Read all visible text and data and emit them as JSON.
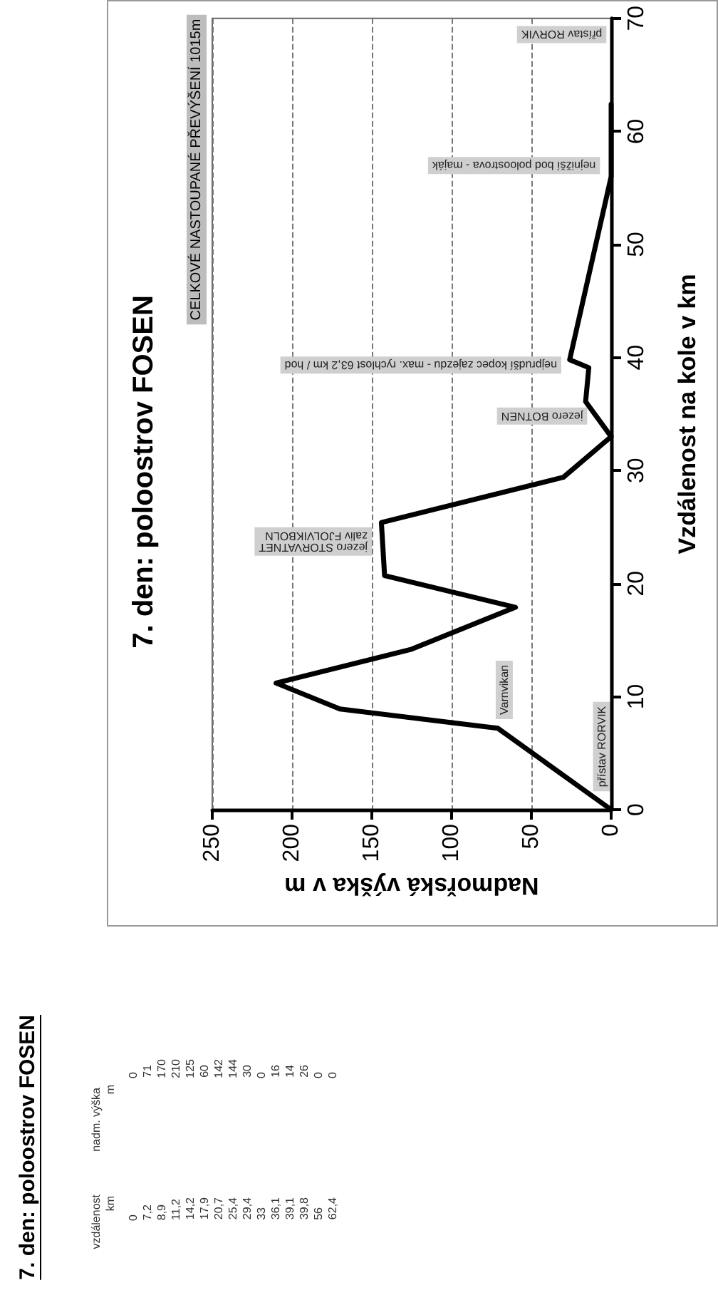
{
  "chart_data": [
    {
      "type": "other",
      "title": "7. den: poloostrov FOSEN",
      "annotations": [
        "vzdálenost",
        "nadm. výška",
        "km",
        "m",
        "0",
        "71",
        "170",
        "210",
        "125",
        "60",
        "142",
        "144",
        "30",
        "0",
        "16",
        "14",
        "26",
        "0",
        "0"
      ],
      "categories": [
        "0",
        "7,2",
        "8,9",
        "11,2",
        "14,2",
        "17,9",
        "20,7",
        "25,4",
        "29,4",
        "33",
        "36,1",
        "39,1",
        "39,8",
        "56",
        "62,4"
      ]
    },
    {
      "type": "line",
      "title": "7. den: poloostrov FOSEN",
      "xlabel": "Nadmořská výška v m",
      "ylabel": "Vzdálenost na kole v km",
      "x": [
        0,
        71,
        170,
        210,
        125,
        60,
        142,
        144,
        30,
        0,
        16,
        14,
        26,
        0,
        0
      ],
      "series": [
        {
          "color": "#000000",
          "values": [
            0,
            7.2,
            8.9,
            11.2,
            14.2,
            17.9,
            20.7,
            25.4,
            29.4,
            33,
            36.1,
            39.1,
            39.8,
            56,
            62.4
          ]
        }
      ],
      "xlim": [
        250,
        0
      ],
      "xticks": [
        250,
        200,
        150,
        100,
        50,
        0
      ],
      "ylim": [
        0,
        70
      ],
      "yticks": [
        0,
        10,
        20,
        30,
        40,
        50,
        60,
        70
      ],
      "grid": "x",
      "marker": "none",
      "line_style": "solid",
      "annotations": [
        "přístav RORVIK",
        "Varnvikan",
        "jezero STORVATNET\nzaliv FJOLVIKBOLN",
        "jezero BOTNEN",
        "nejprudší kopec zajezdu - max. rychlost 63,2 km / hod",
        "nejnižší bod poloostrova - maják",
        "přístav RORVIK",
        "CELKOVÉ NASTOUPANÉ PŘEVÝŠENÍ 1015m"
      ]
    }
  ]
}
